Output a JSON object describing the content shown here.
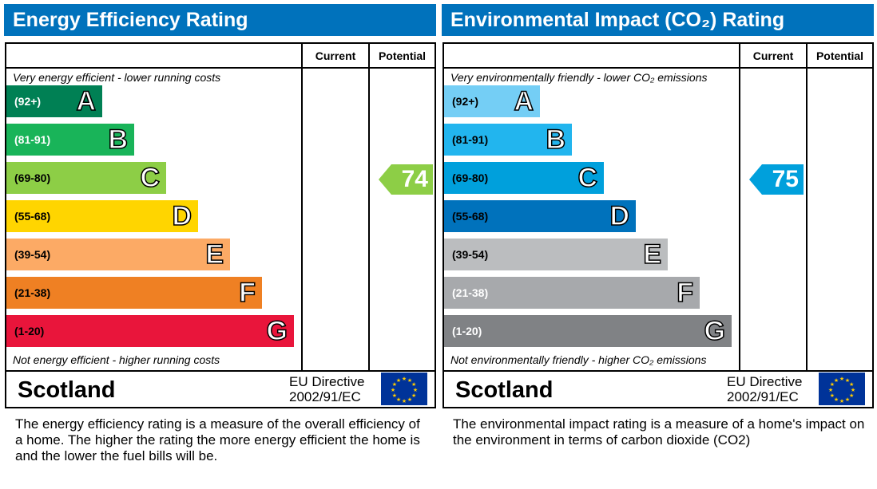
{
  "panels": [
    {
      "title": "Energy Efficiency Rating",
      "col_current": "Current",
      "col_potential": "Potential",
      "top_note": "Very energy efficient - lower running costs",
      "bottom_note": "Not energy efficient - higher running costs",
      "country": "Scotland",
      "directive_line1": "EU Directive",
      "directive_line2": "2002/91/EC",
      "description": "The energy efficiency rating is a measure of the overall efficiency of a home.  The higher the rating the more energy efficient the home is and the lower the fuel bills will be.",
      "bands": [
        {
          "range": "(92+)",
          "letter": "A",
          "color": "#008054",
          "text_color": "#ffffff"
        },
        {
          "range": "(81-91)",
          "letter": "B",
          "color": "#19b459",
          "text_color": "#ffffff"
        },
        {
          "range": "(69-80)",
          "letter": "C",
          "color": "#8dce46",
          "text_color": "#000000"
        },
        {
          "range": "(55-68)",
          "letter": "D",
          "color": "#ffd500",
          "text_color": "#000000"
        },
        {
          "range": "(39-54)",
          "letter": "E",
          "color": "#fcaa65",
          "text_color": "#000000"
        },
        {
          "range": "(21-38)",
          "letter": "F",
          "color": "#ef8023",
          "text_color": "#000000"
        },
        {
          "range": "(1-20)",
          "letter": "G",
          "color": "#e9153b",
          "text_color": "#000000"
        }
      ],
      "current": null,
      "potential": {
        "value": "74",
        "band": "C",
        "color": "#8dce46"
      }
    },
    {
      "title": "Environmental Impact (CO₂) Rating",
      "col_current": "Current",
      "col_potential": "Potential",
      "top_note": "Very environmentally friendly - lower CO₂ emissions",
      "bottom_note": "Not environmentally friendly - higher CO₂ emissions",
      "country": "Scotland",
      "directive_line1": "EU Directive",
      "directive_line2": "2002/91/EC",
      "description": "The environmental impact rating is a measure of a home's impact on the environment in terms of carbon dioxide (CO2)",
      "bands": [
        {
          "range": "(92+)",
          "letter": "A",
          "color": "#74cef5",
          "text_color": "#000000"
        },
        {
          "range": "(81-91)",
          "letter": "B",
          "color": "#22b5ee",
          "text_color": "#000000"
        },
        {
          "range": "(69-80)",
          "letter": "C",
          "color": "#00a0dc",
          "text_color": "#000000"
        },
        {
          "range": "(55-68)",
          "letter": "D",
          "color": "#0072bc",
          "text_color": "#000000"
        },
        {
          "range": "(39-54)",
          "letter": "E",
          "color": "#bbbdbf",
          "text_color": "#000000"
        },
        {
          "range": "(21-38)",
          "letter": "F",
          "color": "#a7a9ac",
          "text_color": "#ffffff"
        },
        {
          "range": "(1-20)",
          "letter": "G",
          "color": "#808285",
          "text_color": "#ffffff"
        }
      ],
      "current": {
        "value": "75",
        "band": "C",
        "color": "#00a0dc"
      },
      "potential": null
    }
  ],
  "chart_data": {
    "type": "table",
    "header_color": "#0072bc"
  }
}
